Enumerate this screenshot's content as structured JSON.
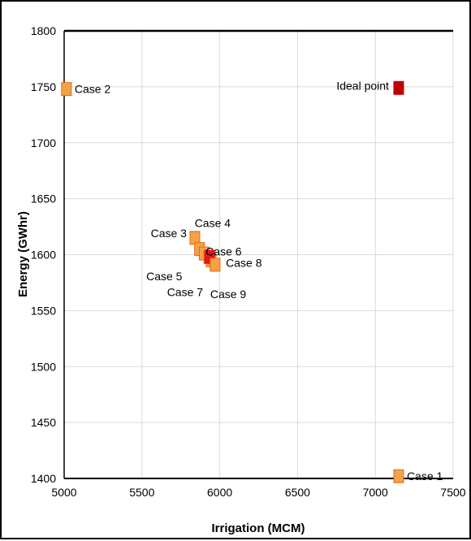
{
  "chart_data": {
    "type": "scatter",
    "xlabel": "Irrigation (MCM)",
    "ylabel": "Energy (GWhr)",
    "xlim": [
      5000,
      7500
    ],
    "ylim": [
      1400,
      1800
    ],
    "xticks": [
      "5000",
      "5500",
      "6000",
      "6500",
      "7000",
      "7500"
    ],
    "yticks": [
      "1400",
      "1450",
      "1500",
      "1550",
      "1600",
      "1650",
      "1700",
      "1750",
      "1800"
    ],
    "grid": true,
    "points": [
      {
        "label": "Case 1",
        "x": 7150,
        "y": 1402,
        "color": "#F4A14A"
      },
      {
        "label": "Case 2",
        "x": 5015,
        "y": 1748,
        "color": "#F4A14A"
      },
      {
        "label": "Case 3",
        "x": 5840,
        "y": 1615,
        "color": "#F4A14A"
      },
      {
        "label": "Case 4",
        "x": 5870,
        "y": 1605,
        "color": "#F4A14A"
      },
      {
        "label": "Case 5",
        "x": 5900,
        "y": 1601,
        "color": "#F4A14A"
      },
      {
        "label": "Case 6",
        "x": 5930,
        "y": 1598,
        "color": "#F4A14A"
      },
      {
        "label": "Case 7",
        "x": 5945,
        "y": 1595,
        "color": "#F4A14A"
      },
      {
        "label": "Case 8",
        "x": 5935,
        "y": 1598,
        "color": "#E8141B"
      },
      {
        "label": "Case 9",
        "x": 5970,
        "y": 1591,
        "color": "#F4A14A"
      },
      {
        "label": "Ideal point",
        "x": 7150,
        "y": 1749,
        "color": "#C00000"
      }
    ]
  }
}
